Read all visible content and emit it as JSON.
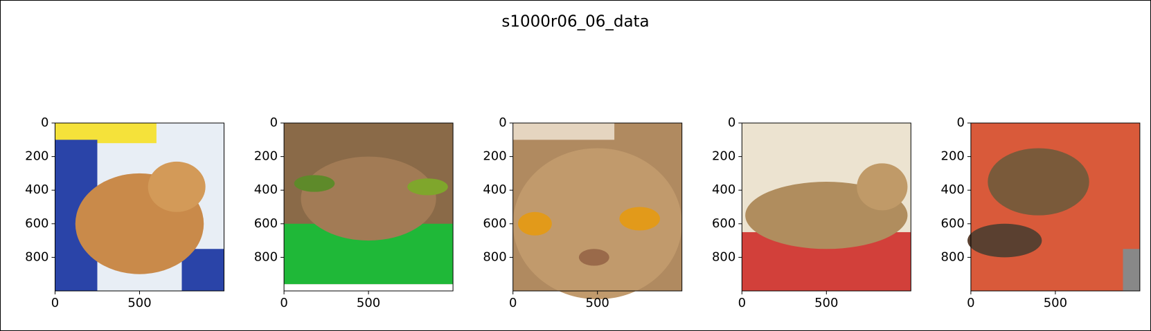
{
  "title": "s1000r06_06_data",
  "chart_data": [
    {
      "type": "image",
      "xlim": [
        0,
        1000
      ],
      "ylim": [
        1000,
        0
      ],
      "xticks": [
        0,
        500
      ],
      "yticks": [
        0,
        200,
        400,
        600,
        800
      ]
    },
    {
      "type": "image",
      "xlim": [
        0,
        1000
      ],
      "ylim": [
        1000,
        0
      ],
      "xticks": [
        0,
        500
      ],
      "yticks": [
        0,
        200,
        400,
        600,
        800
      ]
    },
    {
      "type": "image",
      "xlim": [
        0,
        1000
      ],
      "ylim": [
        1000,
        0
      ],
      "xticks": [
        0,
        500
      ],
      "yticks": [
        0,
        200,
        400,
        600,
        800
      ]
    },
    {
      "type": "image",
      "xlim": [
        0,
        1000
      ],
      "ylim": [
        1000,
        0
      ],
      "xticks": [
        0,
        500
      ],
      "yticks": [
        0,
        200,
        400,
        600,
        800
      ]
    },
    {
      "type": "image",
      "xlim": [
        0,
        1000
      ],
      "ylim": [
        1000,
        0
      ],
      "xticks": [
        0,
        500
      ],
      "yticks": [
        0,
        200,
        400,
        600,
        800
      ]
    }
  ]
}
